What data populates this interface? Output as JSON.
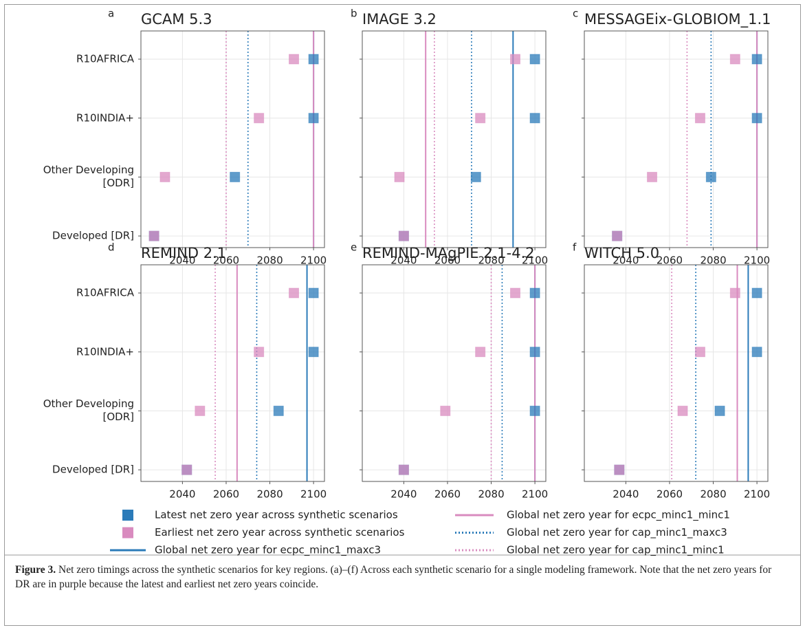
{
  "categories": [
    "R10AFRICA",
    "R10INDIA+",
    "Other Developing [ODR]",
    "Developed [DR]"
  ],
  "chart_data": [
    {
      "type": "dot",
      "panel": "a",
      "title": "GCAM 5.3",
      "latest": [
        2100,
        2100,
        2064,
        2027
      ],
      "earliest": [
        2091,
        2075,
        2032,
        2027
      ],
      "lines": [
        2100,
        2100,
        2070,
        2060
      ],
      "xlim": [
        2021,
        2105
      ],
      "xticks": [
        2040,
        2060,
        2080,
        2100
      ]
    },
    {
      "type": "dot",
      "panel": "b",
      "title": "IMAGE 3.2",
      "latest": [
        2100,
        2100,
        2073,
        2040
      ],
      "earliest": [
        2091,
        2075,
        2038,
        2040
      ],
      "lines": [
        2090,
        2050,
        2071,
        2054
      ],
      "xlim": [
        2021,
        2105
      ],
      "xticks": [
        2040,
        2060,
        2080,
        2100
      ]
    },
    {
      "type": "dot",
      "panel": "c",
      "title": "MESSAGEix-GLOBIOM_1.1",
      "latest": [
        2100,
        2100,
        2079,
        2036
      ],
      "earliest": [
        2090,
        2074,
        2052,
        2036
      ],
      "lines": [
        2100,
        2100,
        2079,
        2068
      ],
      "xlim": [
        2021,
        2105
      ],
      "xticks": [
        2040,
        2060,
        2080,
        2100
      ]
    },
    {
      "type": "dot",
      "panel": "d",
      "title": "REMIND 2.1",
      "latest": [
        2100,
        2100,
        2084,
        2042
      ],
      "earliest": [
        2091,
        2075,
        2048,
        2042
      ],
      "lines": [
        2097,
        2065,
        2074,
        2055
      ],
      "xlim": [
        2021,
        2105
      ],
      "xticks": [
        2040,
        2060,
        2080,
        2100
      ]
    },
    {
      "type": "dot",
      "panel": "e",
      "title": "REMIND-MAgPIE 2.1-4.2",
      "latest": [
        2100,
        2100,
        2100,
        2040
      ],
      "earliest": [
        2091,
        2075,
        2059,
        2040
      ],
      "lines": [
        2100,
        2100,
        2085,
        2080
      ],
      "xlim": [
        2021,
        2105
      ],
      "xticks": [
        2040,
        2060,
        2080,
        2100
      ]
    },
    {
      "type": "dot",
      "panel": "f",
      "title": "WITCH 5.0",
      "latest": [
        2100,
        2100,
        2083,
        2037
      ],
      "earliest": [
        2090,
        2074,
        2066,
        2037
      ],
      "lines": [
        2096,
        2091,
        2072,
        2061
      ],
      "xlim": [
        2021,
        2105
      ],
      "xticks": [
        2040,
        2060,
        2080,
        2100
      ]
    }
  ],
  "legend": [
    {
      "label": "Latest net zero year across synthetic scenarios",
      "color": "#2b7bb9",
      "kind": "square"
    },
    {
      "label": "Earliest net zero year across synthetic scenarios",
      "color": "#d98bbf",
      "kind": "square"
    },
    {
      "label": "Global net zero year for ecpc_minc1_maxc3",
      "color": "#2b7bb9",
      "kind": "solid"
    },
    {
      "label": "Global net zero year for ecpc_minc1_minc1",
      "color": "#d98bbf",
      "kind": "solid"
    },
    {
      "label": "Global net zero year for cap_minc1_maxc3",
      "color": "#2b7bb9",
      "kind": "dotted"
    },
    {
      "label": "Global net zero year for cap_minc1_minc1",
      "color": "#d98bbf",
      "kind": "dotted"
    }
  ],
  "caption": {
    "label": "Figure 3.",
    "text": " Net zero timings across the synthetic scenarios for key regions. (a)–(f) Across each synthetic scenario for a single modeling framework. Note that the net zero years for DR are in purple because the latest and earliest net zero years coincide."
  }
}
